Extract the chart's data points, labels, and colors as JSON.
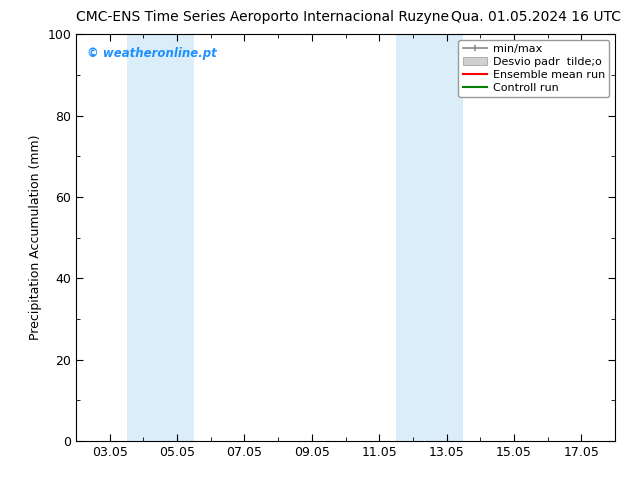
{
  "title_left": "CMC-ENS Time Series Aeroporto Internacional Ruzyne",
  "title_right": "Qua. 01.05.2024 16 UTC",
  "ylabel": "Precipitation Accumulation (mm)",
  "ylim": [
    0,
    100
  ],
  "x_min": 0,
  "x_max": 16,
  "xtick_labels": [
    "03.05",
    "05.05",
    "07.05",
    "09.05",
    "11.05",
    "13.05",
    "15.05",
    "17.05"
  ],
  "xtick_positions": [
    1.0,
    3.0,
    5.0,
    7.0,
    9.0,
    11.0,
    13.0,
    15.0
  ],
  "ytick_positions": [
    0,
    20,
    40,
    60,
    80,
    100
  ],
  "shaded_regions": [
    {
      "x_start": 1.5,
      "x_end": 2.5,
      "color": "#daedf8"
    },
    {
      "x_start": 2.5,
      "x_end": 3.5,
      "color": "#daedf8"
    },
    {
      "x_start": 9.5,
      "x_end": 10.5,
      "color": "#daedf8"
    },
    {
      "x_start": 10.5,
      "x_end": 11.5,
      "color": "#daedf8"
    }
  ],
  "watermark_text": "© weatheronline.pt",
  "watermark_color": "#1e90ff",
  "legend_entries": [
    {
      "label": "min/max",
      "color": "#aaaaaa",
      "style": "errorbar"
    },
    {
      "label": "Desvio padr  tilde;o",
      "color": "#cccccc",
      "style": "band"
    },
    {
      "label": "Ensemble mean run",
      "color": "#ff0000",
      "style": "line"
    },
    {
      "label": "Controll run",
      "color": "#008000",
      "style": "line"
    }
  ],
  "background_color": "#ffffff",
  "plot_bg_color": "#ffffff",
  "border_color": "#000000",
  "title_fontsize": 10,
  "axis_label_fontsize": 9,
  "tick_fontsize": 9,
  "legend_fontsize": 8
}
